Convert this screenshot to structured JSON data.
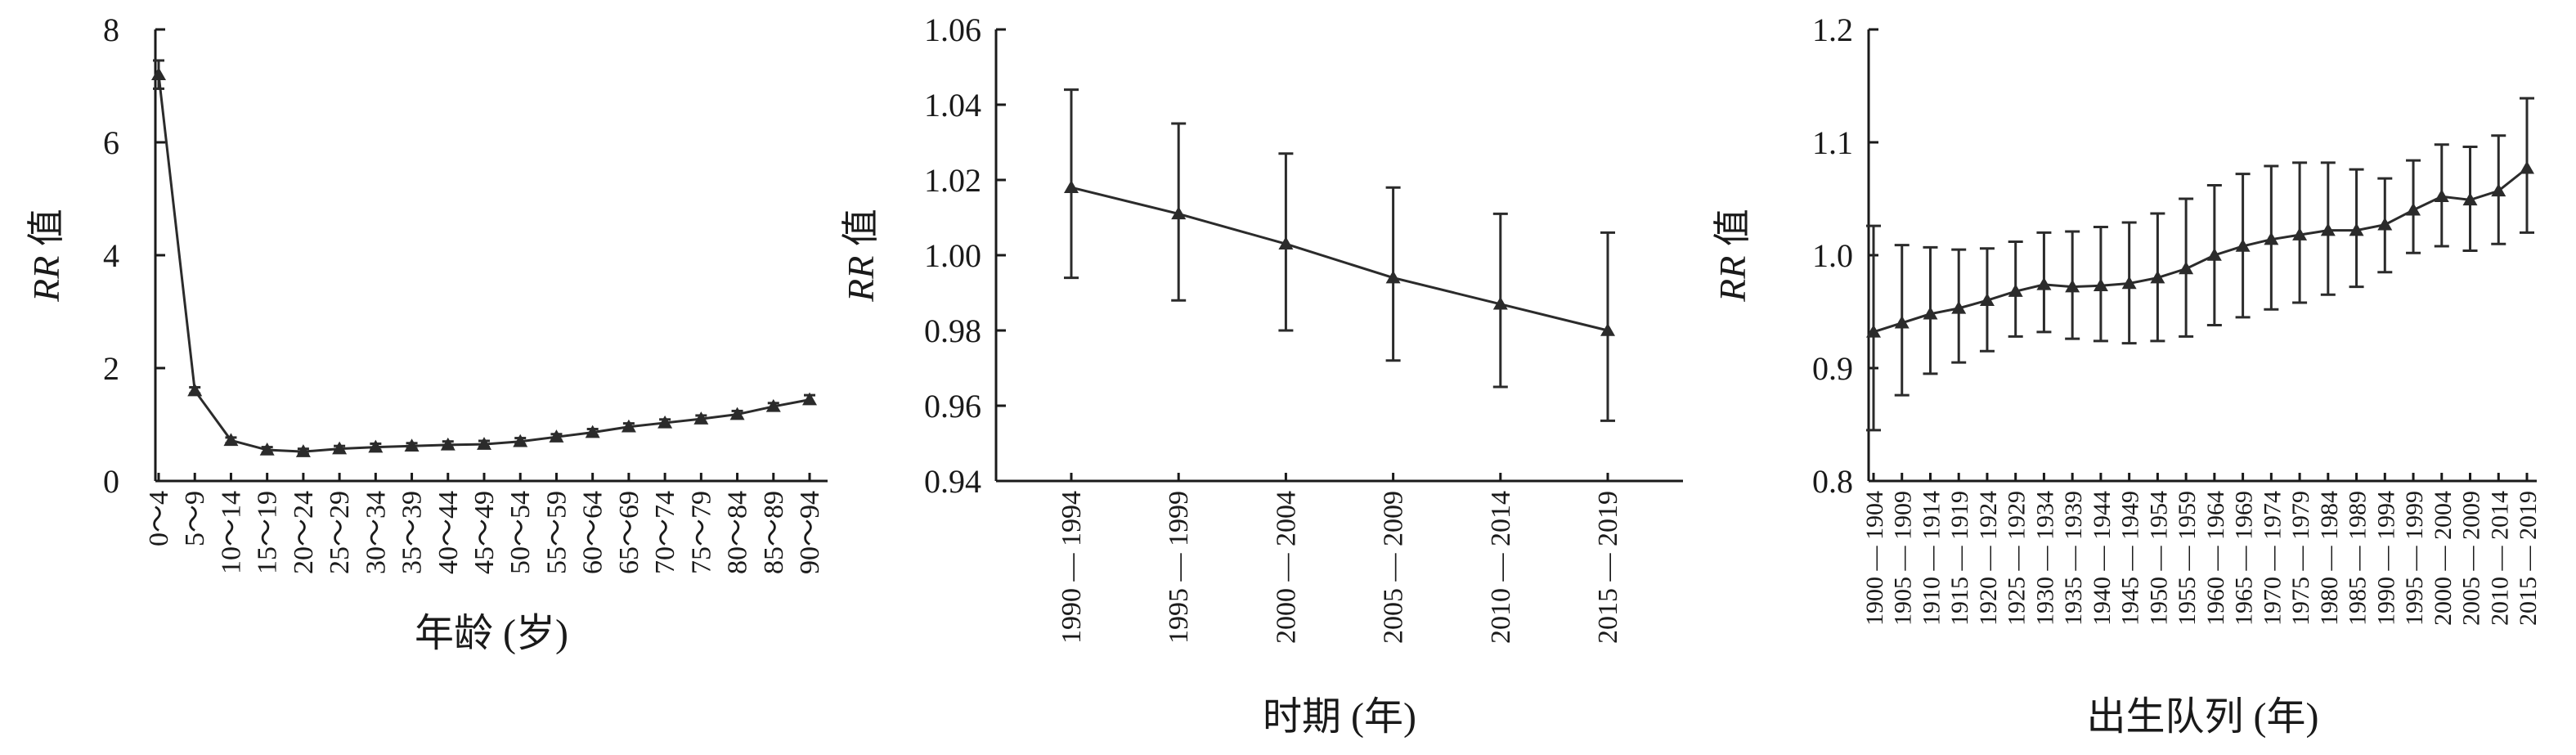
{
  "chart_data": [
    {
      "type": "line",
      "categories": [
        "0～4",
        "5～9",
        "10～14",
        "15～19",
        "20～24",
        "25～29",
        "30～34",
        "35～39",
        "40～44",
        "45～49",
        "50～54",
        "55～59",
        "60～64",
        "65～69",
        "70～74",
        "75～79",
        "80～84",
        "85～89",
        "90～94"
      ],
      "values": [
        7.2,
        1.6,
        0.72,
        0.55,
        0.52,
        0.57,
        0.6,
        0.62,
        0.64,
        0.65,
        0.7,
        0.78,
        0.86,
        0.96,
        1.03,
        1.1,
        1.18,
        1.32,
        1.44
      ],
      "lower": [
        6.95,
        1.55,
        0.67,
        0.5,
        0.48,
        0.52,
        0.55,
        0.57,
        0.59,
        0.6,
        0.65,
        0.73,
        0.81,
        0.9,
        0.97,
        1.04,
        1.12,
        1.25,
        1.37
      ],
      "upper": [
        7.45,
        1.66,
        0.77,
        0.6,
        0.57,
        0.62,
        0.66,
        0.67,
        0.7,
        0.71,
        0.76,
        0.83,
        0.92,
        1.02,
        1.09,
        1.16,
        1.24,
        1.38,
        1.52
      ],
      "ylim": [
        0,
        8
      ],
      "yticks": [
        0,
        2,
        4,
        6,
        8
      ],
      "ylabel": "RR 值",
      "ylabel_italic": "RR",
      "ylabel_rest": " 值",
      "xlabel": "年龄 (岁)",
      "grid": false,
      "line_color": "#2b2b2b"
    },
    {
      "type": "line",
      "categories": [
        "1990 — 1994",
        "1995 — 1999",
        "2000 — 2004",
        "2005 — 2009",
        "2010 — 2014",
        "2015 — 2019"
      ],
      "values": [
        1.018,
        1.011,
        1.003,
        0.994,
        0.987,
        0.98
      ],
      "lower": [
        0.994,
        0.988,
        0.98,
        0.972,
        0.965,
        0.956
      ],
      "upper": [
        1.044,
        1.035,
        1.027,
        1.018,
        1.011,
        1.006
      ],
      "ylim": [
        0.94,
        1.06
      ],
      "yticks": [
        "0.94",
        "0.96",
        "0.98",
        "1.00",
        "1.02",
        "1.04",
        "1.06"
      ],
      "ylabel": "RR 值",
      "ylabel_italic": "RR",
      "ylabel_rest": " 值",
      "xlabel": "时期 (年)",
      "grid": false,
      "line_color": "#2b2b2b"
    },
    {
      "type": "line",
      "categories": [
        "1900 — 1904",
        "1905 — 1909",
        "1910 — 1914",
        "1915 — 1919",
        "1920 — 1924",
        "1925 — 1929",
        "1930 — 1934",
        "1935 — 1939",
        "1940 — 1944",
        "1945 — 1949",
        "1950 — 1954",
        "1955 — 1959",
        "1960 — 1964",
        "1965 — 1969",
        "1970 — 1974",
        "1975 — 1979",
        "1980 — 1984",
        "1985 — 1989",
        "1990 — 1994",
        "1995 — 1999",
        "2000 — 2004",
        "2005 — 2009",
        "2010 — 2014",
        "2015 — 2019"
      ],
      "values": [
        0.932,
        0.94,
        0.948,
        0.953,
        0.96,
        0.968,
        0.974,
        0.972,
        0.973,
        0.975,
        0.98,
        0.988,
        1.0,
        1.008,
        1.014,
        1.018,
        1.022,
        1.022,
        1.027,
        1.04,
        1.052,
        1.049,
        1.057,
        1.077
      ],
      "lower": [
        0.845,
        0.876,
        0.895,
        0.905,
        0.915,
        0.928,
        0.932,
        0.926,
        0.924,
        0.922,
        0.924,
        0.928,
        0.938,
        0.945,
        0.952,
        0.958,
        0.965,
        0.972,
        0.985,
        1.002,
        1.008,
        1.004,
        1.01,
        1.02
      ],
      "upper": [
        1.026,
        1.009,
        1.007,
        1.005,
        1.006,
        1.012,
        1.02,
        1.021,
        1.025,
        1.029,
        1.037,
        1.05,
        1.062,
        1.072,
        1.079,
        1.082,
        1.082,
        1.076,
        1.068,
        1.084,
        1.098,
        1.096,
        1.106,
        1.139
      ],
      "ylim": [
        0.8,
        1.2
      ],
      "yticks": [
        "0.8",
        "0.9",
        "1.0",
        "1.1",
        "1.2"
      ],
      "ylabel": "RR 值",
      "ylabel_italic": "RR",
      "ylabel_rest": " 值",
      "xlabel": "出生队列 (年)",
      "grid": false,
      "line_color": "#2b2b2b"
    }
  ]
}
